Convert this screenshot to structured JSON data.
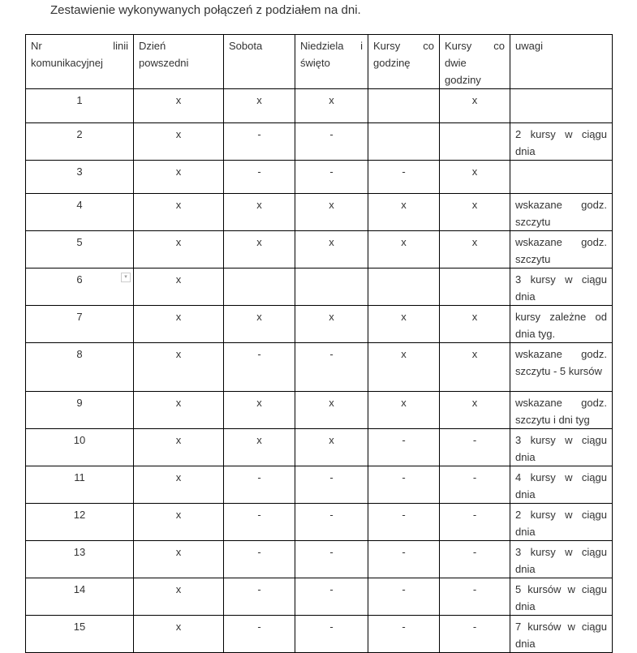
{
  "title": "Zestawienie wykonywanych połączeń z podziałem na dni.",
  "headers": [
    "Nr linii komunikacyjnej",
    "Dzień powszedni",
    "Sobota",
    "Niedziela i święto",
    "Kursy co godzinę",
    "Kursy co dwie godziny",
    "uwagi"
  ],
  "rows": [
    [
      "1",
      "x",
      "x",
      "x",
      "",
      "x",
      ""
    ],
    [
      "2",
      "x",
      "-",
      "-",
      "",
      "",
      "2 kursy w ciągu dnia"
    ],
    [
      "3",
      "x",
      "-",
      "-",
      "-",
      "x",
      ""
    ],
    [
      "4",
      "x",
      "x",
      "x",
      "x",
      "x",
      "wskazane godz. szczytu"
    ],
    [
      "5",
      "x",
      "x",
      "x",
      "x",
      "x",
      "wskazane godz. szczytu"
    ],
    [
      "6",
      "x",
      "",
      "",
      "",
      "",
      "3 kursy w ciągu dnia"
    ],
    [
      "7",
      "x",
      "x",
      "x",
      "x",
      "x",
      "kursy zależne od dnia tyg."
    ],
    [
      "8",
      "x",
      "-",
      "-",
      "x",
      "x",
      "wskazane godz. szczytu - 5 kursów"
    ],
    [
      "9",
      "x",
      "x",
      "x",
      "x",
      "x",
      "wskazane godz. szczytu i dni tyg"
    ],
    [
      "10",
      "x",
      "x",
      "x",
      "-",
      "-",
      "3 kursy w ciągu dnia"
    ],
    [
      "11",
      "x",
      "-",
      "-",
      "-",
      "-",
      "4 kursy w ciągu dnia"
    ],
    [
      "12",
      "x",
      "-",
      "-",
      "-",
      "-",
      "2 kursy w ciągu dnia"
    ],
    [
      "13",
      "x",
      "-",
      "-",
      "-",
      "-",
      "3 kursy w ciągu dnia"
    ],
    [
      "14",
      "x",
      "-",
      "-",
      "-",
      "-",
      "5 kursów w ciągu dnia"
    ],
    [
      "15",
      "x",
      "-",
      "-",
      "-",
      "-",
      "7 kursów w ciągu dnia"
    ]
  ]
}
